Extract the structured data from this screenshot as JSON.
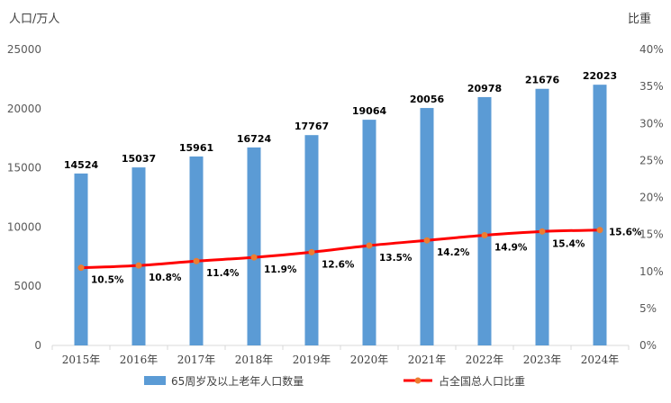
{
  "chart_data": {
    "type": "bar",
    "categories": [
      "2015年",
      "2016年",
      "2017年",
      "2018年",
      "2019年",
      "2020年",
      "2021年",
      "2022年",
      "2023年",
      "2024年"
    ],
    "series": [
      {
        "name": "65周岁及以上老年人口数量",
        "type": "bar",
        "axis": "left",
        "values": [
          14524,
          15037,
          15961,
          16724,
          17767,
          19064,
          20056,
          20978,
          21676,
          22023
        ],
        "labels": [
          "14524",
          "15037",
          "15961",
          "16724",
          "17767",
          "19064",
          "20056",
          "20978",
          "21676",
          "22023"
        ]
      },
      {
        "name": "占全国总人口比重",
        "type": "line",
        "axis": "right",
        "values": [
          10.5,
          10.8,
          11.4,
          11.9,
          12.6,
          13.5,
          14.2,
          14.9,
          15.4,
          15.6
        ],
        "labels": [
          "10.5%",
          "10.8%",
          "11.4%",
          "11.9%",
          "12.6%",
          "13.5%",
          "14.2%",
          "14.9%",
          "15.4%",
          "15.6%"
        ]
      }
    ],
    "ylabel": "人口/万人",
    "y2label": "比重",
    "ylim": [
      0,
      25000
    ],
    "y2lim": [
      0,
      40
    ],
    "yticks": [
      0,
      5000,
      10000,
      15000,
      20000,
      25000
    ],
    "ytick_labels": [
      "0",
      "5000",
      "10000",
      "15000",
      "20000",
      "25000"
    ],
    "y2ticks": [
      0,
      5,
      10,
      15,
      20,
      25,
      30,
      35,
      40
    ],
    "y2tick_labels": [
      "0%",
      "5%",
      "10%",
      "15%",
      "20%",
      "25%",
      "30%",
      "35%",
      "40%"
    ],
    "grid": false,
    "legend": "bottom",
    "colors": {
      "bar": "#5b9bd5",
      "line": "#ff0000",
      "marker": "#ed7d31",
      "axis": "#d9d9d9"
    }
  }
}
